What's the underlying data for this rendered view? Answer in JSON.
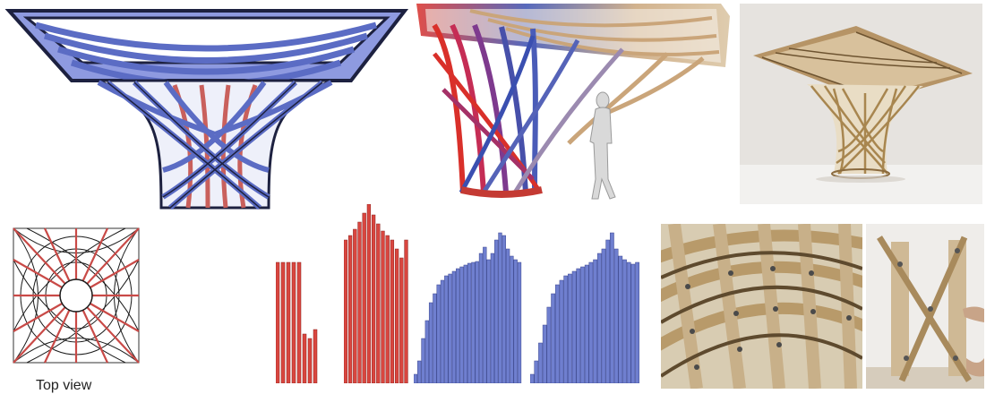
{
  "caption": {
    "top_view": "Top view"
  },
  "colors": {
    "blue_strip": "#6f7fcf",
    "blue_dark": "#1d2140",
    "red_strip": "#d9463f",
    "wood": "#c9ab7a",
    "wood_dark": "#8a6a3e",
    "photo_bg": "#e8e6e2"
  }
}
